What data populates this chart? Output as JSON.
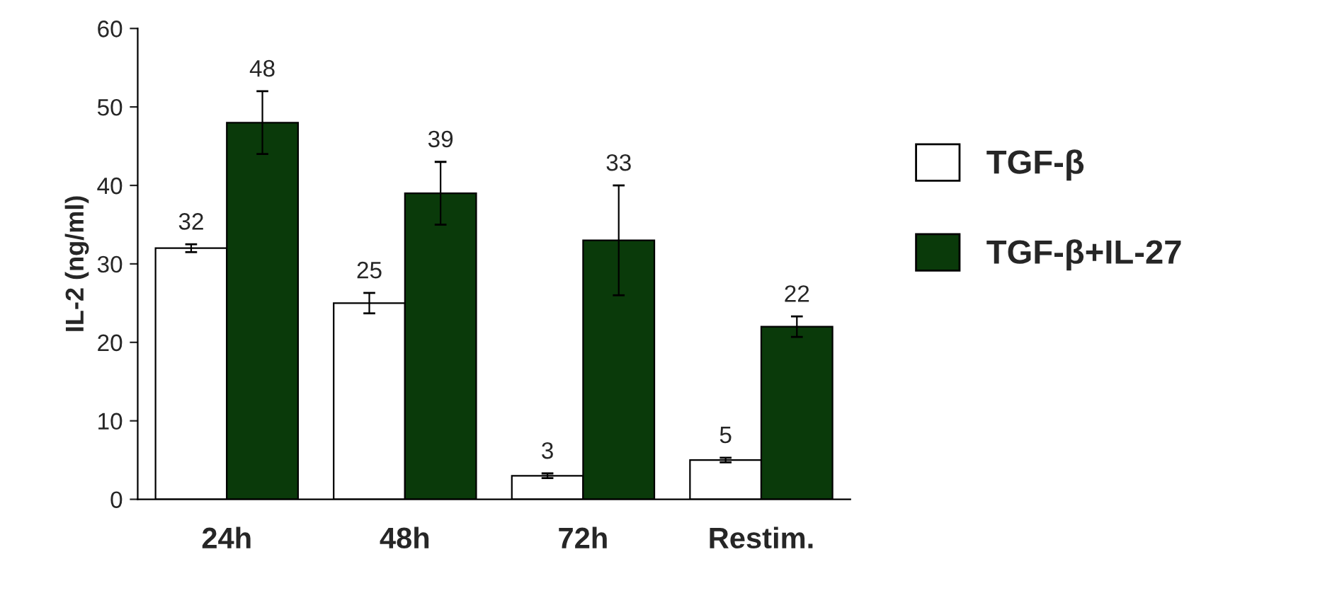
{
  "chart_data": {
    "type": "bar",
    "ylabel": "IL-2 (ng/ml)",
    "categories": [
      "24h",
      "48h",
      "72h",
      "Restim."
    ],
    "series": [
      {
        "name": "TGF-β",
        "color": "#ffffff",
        "values": [
          32,
          25,
          3,
          5
        ],
        "errors": [
          0.5,
          1.3,
          0.3,
          0.3
        ]
      },
      {
        "name": "TGF-β+IL-27",
        "color": "#0a3a0a",
        "values": [
          48,
          39,
          33,
          22
        ],
        "errors": [
          4,
          4,
          7,
          1.3
        ]
      }
    ],
    "ylim": [
      0,
      60
    ],
    "yticks": [
      0,
      10,
      20,
      30,
      40,
      50,
      60
    ],
    "data_labels": true,
    "grid": false,
    "legend": "right"
  }
}
